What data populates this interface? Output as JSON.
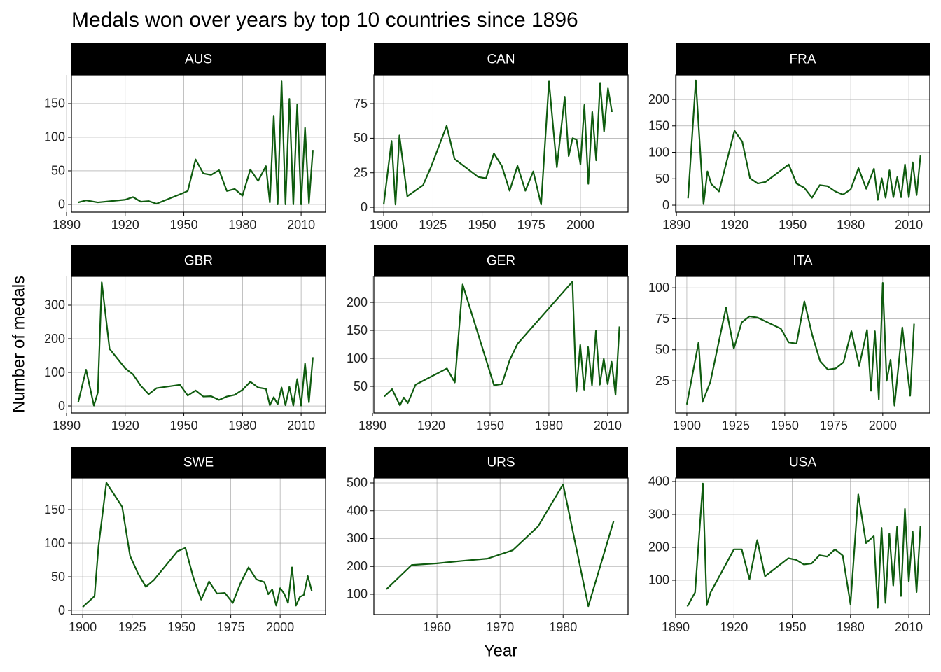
{
  "chart_data": {
    "type": "line",
    "title": "Medals won over years by top 10 countries since 1896",
    "xlabel": "Year",
    "ylabel": "Number of medals",
    "color": "#0f5c0f",
    "grid": true,
    "facets": [
      {
        "title": "AUS",
        "x": [
          1896,
          1900,
          1906,
          1920,
          1924,
          1928,
          1932,
          1936,
          1948,
          1952,
          1956,
          1960,
          1964,
          1968,
          1972,
          1976,
          1980,
          1984,
          1988,
          1992,
          1994,
          1996,
          1998,
          2000,
          2002,
          2004,
          2006,
          2008,
          2010,
          2012,
          2014,
          2016
        ],
        "values": [
          3,
          6,
          3,
          7,
          11,
          4,
          5,
          1,
          15,
          20,
          67,
          46,
          44,
          51,
          20,
          23,
          13,
          52,
          35,
          57,
          3,
          132,
          0,
          183,
          0,
          157,
          0,
          149,
          0,
          114,
          2,
          81
        ],
        "xlim": [
          1892.5,
          2022.5
        ],
        "ylim": [
          -11.5,
          192.7
        ],
        "xticks": [
          1890,
          1920,
          1950,
          1980,
          2010
        ],
        "yticks": [
          0,
          50,
          100,
          150
        ]
      },
      {
        "title": "CAN",
        "x": [
          1900,
          1904,
          1906,
          1908,
          1912,
          1920,
          1924,
          1928,
          1932,
          1936,
          1948,
          1952,
          1956,
          1960,
          1964,
          1968,
          1972,
          1976,
          1980,
          1984,
          1988,
          1992,
          1994,
          1996,
          1998,
          2000,
          2002,
          2004,
          2006,
          2008,
          2010,
          2012,
          2014,
          2016
        ],
        "values": [
          2,
          48,
          2,
          52,
          8,
          16,
          29,
          44,
          59,
          35,
          22,
          21,
          39,
          30,
          12,
          30,
          12,
          26,
          2,
          91,
          29,
          80,
          37,
          50,
          49,
          31,
          74,
          17,
          69,
          34,
          90,
          55,
          86,
          69
        ],
        "xlim": [
          1895.0,
          2024.2
        ],
        "ylim": [
          -3.5,
          95.8
        ],
        "xticks": [
          1900,
          1925,
          1950,
          1975,
          2000
        ],
        "yticks": [
          0,
          25,
          50,
          75
        ]
      },
      {
        "title": "FRA",
        "x": [
          1896,
          1900,
          1904,
          1906,
          1908,
          1912,
          1920,
          1924,
          1928,
          1932,
          1936,
          1948,
          1952,
          1956,
          1960,
          1964,
          1968,
          1972,
          1976,
          1980,
          1984,
          1988,
          1992,
          1994,
          1996,
          1998,
          2000,
          2002,
          2004,
          2006,
          2008,
          2010,
          2012,
          2014,
          2016
        ],
        "values": [
          13,
          236,
          2,
          64,
          40,
          26,
          141,
          120,
          51,
          41,
          44,
          77,
          41,
          33,
          14,
          38,
          36,
          26,
          20,
          30,
          70,
          31,
          69,
          10,
          51,
          14,
          66,
          15,
          53,
          15,
          77,
          15,
          81,
          19,
          94
        ],
        "xlim": [
          1889.6,
          2020.8
        ],
        "ylim": [
          -13.2,
          246.4
        ],
        "xticks": [
          1890,
          1920,
          1950,
          1980,
          2010
        ],
        "yticks": [
          0,
          50,
          100,
          150,
          200
        ]
      },
      {
        "title": "GBR",
        "x": [
          1896,
          1900,
          1904,
          1906,
          1908,
          1912,
          1920,
          1924,
          1928,
          1932,
          1936,
          1948,
          1952,
          1956,
          1960,
          1964,
          1968,
          1972,
          1976,
          1980,
          1984,
          1988,
          1992,
          1994,
          1996,
          1998,
          2000,
          2002,
          2004,
          2006,
          2008,
          2010,
          2012,
          2014,
          2016
        ],
        "values": [
          12,
          108,
          1,
          40,
          368,
          170,
          112,
          94,
          60,
          35,
          53,
          63,
          31,
          46,
          28,
          29,
          18,
          28,
          33,
          48,
          72,
          55,
          51,
          2,
          26,
          5,
          55,
          2,
          57,
          1,
          80,
          1,
          126,
          11,
          145
        ],
        "xlim": [
          1892.5,
          2022.5
        ],
        "ylim": [
          -20.8,
          385.4
        ],
        "xticks": [
          1890,
          1920,
          1950,
          1980,
          2010
        ],
        "yticks": [
          0,
          100,
          200,
          300
        ]
      },
      {
        "title": "GER",
        "x": [
          1896,
          1900,
          1904,
          1906,
          1908,
          1912,
          1928,
          1932,
          1936,
          1952,
          1956,
          1960,
          1964,
          1992,
          1994,
          1996,
          1998,
          2000,
          2002,
          2004,
          2006,
          2008,
          2010,
          2012,
          2014,
          2016
        ],
        "values": [
          32,
          45,
          16,
          30,
          20,
          53,
          82,
          57,
          232,
          52,
          54,
          97,
          126,
          237,
          41,
          124,
          44,
          120,
          52,
          149,
          53,
          99,
          54,
          94,
          35,
          157
        ],
        "xlim": [
          1890.7,
          2020.4
        ],
        "ylim": [
          2.5,
          246.3
        ],
        "xticks": [
          1890,
          1920,
          1950,
          1980,
          2010
        ],
        "yticks": [
          50,
          100,
          150,
          200
        ]
      },
      {
        "title": "ITA",
        "x": [
          1900,
          1906,
          1908,
          1912,
          1920,
          1924,
          1928,
          1932,
          1936,
          1948,
          1952,
          1956,
          1960,
          1964,
          1968,
          1972,
          1976,
          1980,
          1984,
          1988,
          1992,
          1994,
          1996,
          1998,
          2000,
          2002,
          2004,
          2006,
          2010,
          2014,
          2016
        ],
        "values": [
          6,
          56,
          8,
          24,
          84,
          51,
          72,
          77,
          76,
          67,
          56,
          55,
          89,
          62,
          41,
          34,
          35,
          40,
          65,
          37,
          66,
          17,
          65,
          10,
          104,
          25,
          42,
          5,
          68,
          13,
          71
        ],
        "xlim": [
          1894.3,
          2024.0
        ],
        "ylim": [
          -0.9,
          109.1
        ],
        "xticks": [
          1900,
          1925,
          1950,
          1975,
          2000
        ],
        "yticks": [
          25,
          50,
          75,
          100
        ]
      },
      {
        "title": "SWE",
        "x": [
          1900,
          1906,
          1908,
          1912,
          1920,
          1924,
          1928,
          1932,
          1936,
          1948,
          1952,
          1956,
          1960,
          1964,
          1968,
          1972,
          1976,
          1980,
          1984,
          1988,
          1992,
          1994,
          1996,
          1998,
          2000,
          2002,
          2004,
          2006,
          2008,
          2010,
          2012,
          2014,
          2016
        ],
        "values": [
          5,
          21,
          95,
          190,
          154,
          81,
          55,
          35,
          45,
          88,
          93,
          49,
          16,
          43,
          25,
          26,
          11,
          41,
          64,
          46,
          42,
          24,
          31,
          7,
          33,
          25,
          11,
          64,
          7,
          20,
          23,
          51,
          29
        ],
        "xlim": [
          1894.3,
          2023.0
        ],
        "ylim": [
          -6.25,
          196.9
        ],
        "xticks": [
          1900,
          1925,
          1950,
          1975,
          2000
        ],
        "yticks": [
          0,
          50,
          100,
          150
        ]
      },
      {
        "title": "URS",
        "x": [
          1952,
          1956,
          1960,
          1964,
          1968,
          1972,
          1976,
          1980,
          1984,
          1988
        ],
        "values": [
          118,
          205,
          211,
          220,
          228,
          258,
          343,
          495,
          57,
          362
        ],
        "xlim": [
          1950.0,
          1990.3
        ],
        "ylim": [
          27,
          517.6
        ],
        "xticks": [
          1960,
          1970,
          1980
        ],
        "yticks": [
          100,
          200,
          300,
          400,
          500
        ]
      },
      {
        "title": "USA",
        "x": [
          1896,
          1900,
          1904,
          1906,
          1908,
          1920,
          1924,
          1928,
          1932,
          1936,
          1948,
          1952,
          1956,
          1960,
          1964,
          1968,
          1972,
          1976,
          1980,
          1984,
          1988,
          1992,
          1994,
          1996,
          1998,
          2000,
          2002,
          2004,
          2006,
          2008,
          2010,
          2012,
          2014,
          2016
        ],
        "values": [
          20,
          63,
          394,
          24,
          63,
          194,
          194,
          103,
          222,
          112,
          167,
          162,
          148,
          151,
          176,
          172,
          194,
          175,
          27,
          361,
          213,
          234,
          16,
          259,
          31,
          242,
          84,
          263,
          52,
          317,
          97,
          248,
          64,
          264
        ],
        "xlim": [
          1890.0,
          2020.8
        ],
        "ylim": [
          -4.3,
          410.6
        ],
        "xticks": [
          1890,
          1920,
          1950,
          1980,
          2010
        ],
        "yticks": [
          100,
          200,
          300,
          400
        ]
      }
    ]
  }
}
